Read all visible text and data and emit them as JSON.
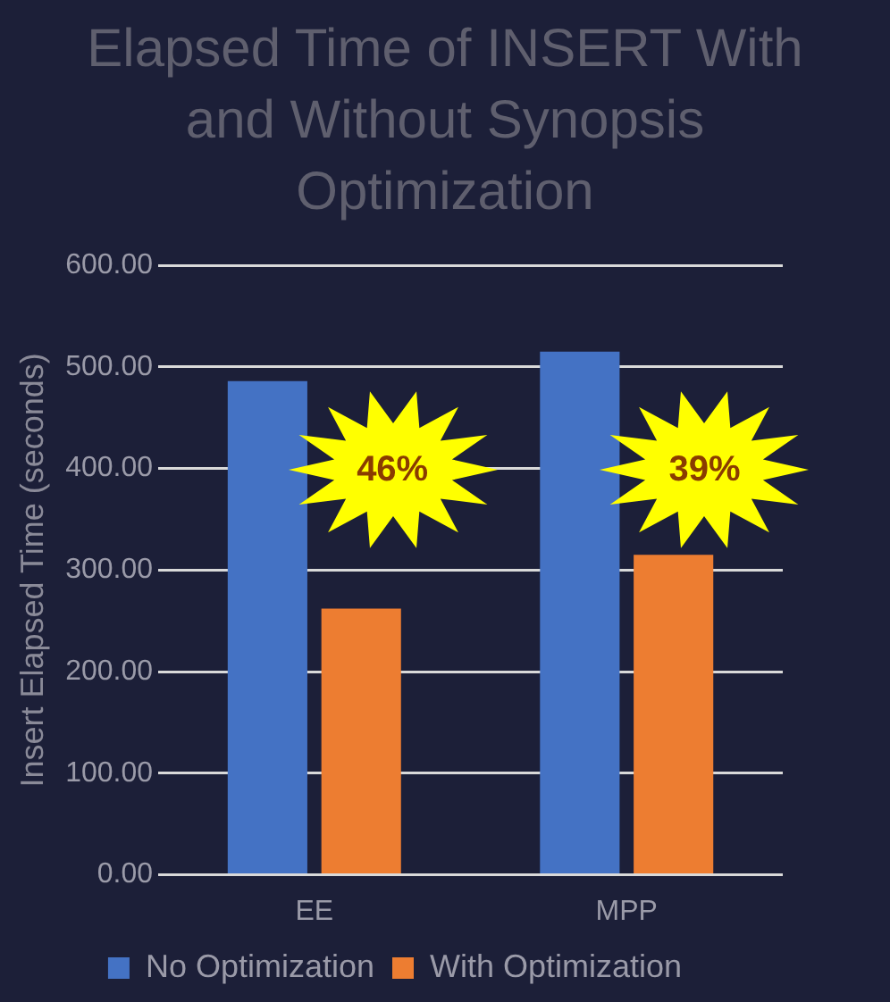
{
  "chart_data": {
    "type": "bar",
    "title": "Elapsed Time of INSERT With and Without Synopsis Optimization",
    "ylabel": "Insert Elapsed Time (seconds)",
    "categories": [
      "EE",
      "MPP"
    ],
    "series": [
      {
        "name": "No Optimization",
        "color": "#4472c4",
        "values": [
          486,
          515
        ]
      },
      {
        "name": "With Optimization",
        "color": "#ed7d31",
        "values": [
          262,
          315
        ]
      }
    ],
    "ylim": [
      0,
      600
    ],
    "yticks": [
      {
        "value": 0,
        "label": "0.00"
      },
      {
        "value": 100,
        "label": "100.00"
      },
      {
        "value": 200,
        "label": "200.00"
      },
      {
        "value": 300,
        "label": "300.00"
      },
      {
        "value": 400,
        "label": "400.00"
      },
      {
        "value": 500,
        "label": "500.00"
      },
      {
        "value": 600,
        "label": "600.00"
      }
    ],
    "grid": "y",
    "legend": "bottom",
    "annotations": [
      "46%",
      "39%"
    ]
  }
}
